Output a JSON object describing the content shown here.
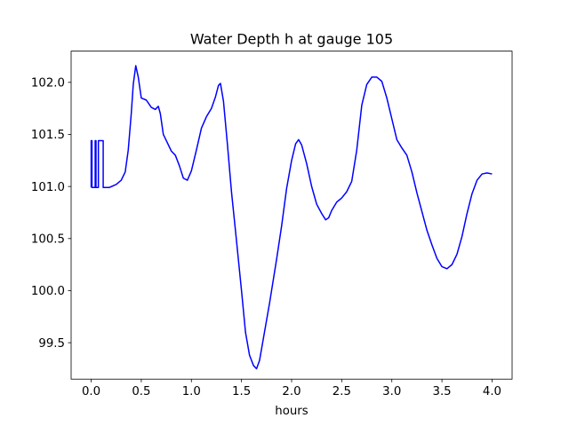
{
  "chart_data": {
    "type": "line",
    "title": "Water Depth h at gauge 105",
    "xlabel": "hours",
    "ylabel": "",
    "xlim": [
      -0.2,
      4.2
    ],
    "ylim": [
      99.15,
      102.3
    ],
    "grid": false,
    "x_ticks": [
      0.0,
      0.5,
      1.0,
      1.5,
      2.0,
      2.5,
      3.0,
      3.5,
      4.0
    ],
    "x_tick_labels": [
      "0.0",
      "0.5",
      "1.0",
      "1.5",
      "2.0",
      "2.5",
      "3.0",
      "3.5",
      "4.0"
    ],
    "y_ticks": [
      99.5,
      100.0,
      100.5,
      101.0,
      101.5,
      102.0
    ],
    "y_tick_labels": [
      "99.5",
      "100.0",
      "100.5",
      "101.0",
      "101.5",
      "102.0"
    ],
    "series": [
      {
        "color": "#0000ff",
        "points": [
          [
            0.0,
            100.99
          ],
          [
            0.0,
            101.44
          ],
          [
            0.008,
            101.44
          ],
          [
            0.008,
            100.99
          ],
          [
            0.04,
            100.99
          ],
          [
            0.04,
            101.44
          ],
          [
            0.048,
            101.44
          ],
          [
            0.048,
            100.99
          ],
          [
            0.072,
            100.99
          ],
          [
            0.072,
            101.44
          ],
          [
            0.12,
            101.44
          ],
          [
            0.12,
            100.99
          ],
          [
            0.18,
            100.99
          ],
          [
            0.25,
            101.02
          ],
          [
            0.3,
            101.06
          ],
          [
            0.34,
            101.14
          ],
          [
            0.37,
            101.35
          ],
          [
            0.4,
            101.7
          ],
          [
            0.42,
            101.98
          ],
          [
            0.445,
            102.16
          ],
          [
            0.47,
            102.05
          ],
          [
            0.5,
            101.85
          ],
          [
            0.55,
            101.83
          ],
          [
            0.6,
            101.76
          ],
          [
            0.64,
            101.74
          ],
          [
            0.67,
            101.77
          ],
          [
            0.69,
            101.7
          ],
          [
            0.72,
            101.5
          ],
          [
            0.76,
            101.42
          ],
          [
            0.8,
            101.34
          ],
          [
            0.84,
            101.3
          ],
          [
            0.88,
            101.2
          ],
          [
            0.92,
            101.08
          ],
          [
            0.96,
            101.06
          ],
          [
            1.0,
            101.15
          ],
          [
            1.05,
            101.35
          ],
          [
            1.1,
            101.56
          ],
          [
            1.15,
            101.67
          ],
          [
            1.2,
            101.75
          ],
          [
            1.24,
            101.86
          ],
          [
            1.27,
            101.97
          ],
          [
            1.29,
            101.99
          ],
          [
            1.32,
            101.82
          ],
          [
            1.36,
            101.4
          ],
          [
            1.4,
            100.95
          ],
          [
            1.45,
            100.48
          ],
          [
            1.5,
            100.0
          ],
          [
            1.54,
            99.6
          ],
          [
            1.58,
            99.38
          ],
          [
            1.62,
            99.28
          ],
          [
            1.65,
            99.25
          ],
          [
            1.68,
            99.33
          ],
          [
            1.72,
            99.55
          ],
          [
            1.78,
            99.88
          ],
          [
            1.85,
            100.3
          ],
          [
            1.9,
            100.62
          ],
          [
            1.95,
            100.98
          ],
          [
            2.0,
            101.25
          ],
          [
            2.04,
            101.41
          ],
          [
            2.07,
            101.45
          ],
          [
            2.1,
            101.4
          ],
          [
            2.15,
            101.22
          ],
          [
            2.2,
            101.0
          ],
          [
            2.25,
            100.83
          ],
          [
            2.3,
            100.74
          ],
          [
            2.34,
            100.68
          ],
          [
            2.37,
            100.7
          ],
          [
            2.4,
            100.77
          ],
          [
            2.45,
            100.85
          ],
          [
            2.5,
            100.89
          ],
          [
            2.55,
            100.95
          ],
          [
            2.6,
            101.05
          ],
          [
            2.65,
            101.35
          ],
          [
            2.7,
            101.78
          ],
          [
            2.75,
            101.98
          ],
          [
            2.8,
            102.05
          ],
          [
            2.85,
            102.05
          ],
          [
            2.9,
            102.01
          ],
          [
            2.95,
            101.85
          ],
          [
            3.0,
            101.65
          ],
          [
            3.05,
            101.45
          ],
          [
            3.1,
            101.37
          ],
          [
            3.15,
            101.3
          ],
          [
            3.2,
            101.14
          ],
          [
            3.25,
            100.94
          ],
          [
            3.3,
            100.76
          ],
          [
            3.35,
            100.58
          ],
          [
            3.4,
            100.44
          ],
          [
            3.45,
            100.31
          ],
          [
            3.5,
            100.23
          ],
          [
            3.55,
            100.21
          ],
          [
            3.6,
            100.25
          ],
          [
            3.65,
            100.35
          ],
          [
            3.7,
            100.52
          ],
          [
            3.75,
            100.74
          ],
          [
            3.8,
            100.93
          ],
          [
            3.85,
            101.06
          ],
          [
            3.9,
            101.12
          ],
          [
            3.95,
            101.13
          ],
          [
            4.0,
            101.12
          ]
        ]
      }
    ]
  }
}
